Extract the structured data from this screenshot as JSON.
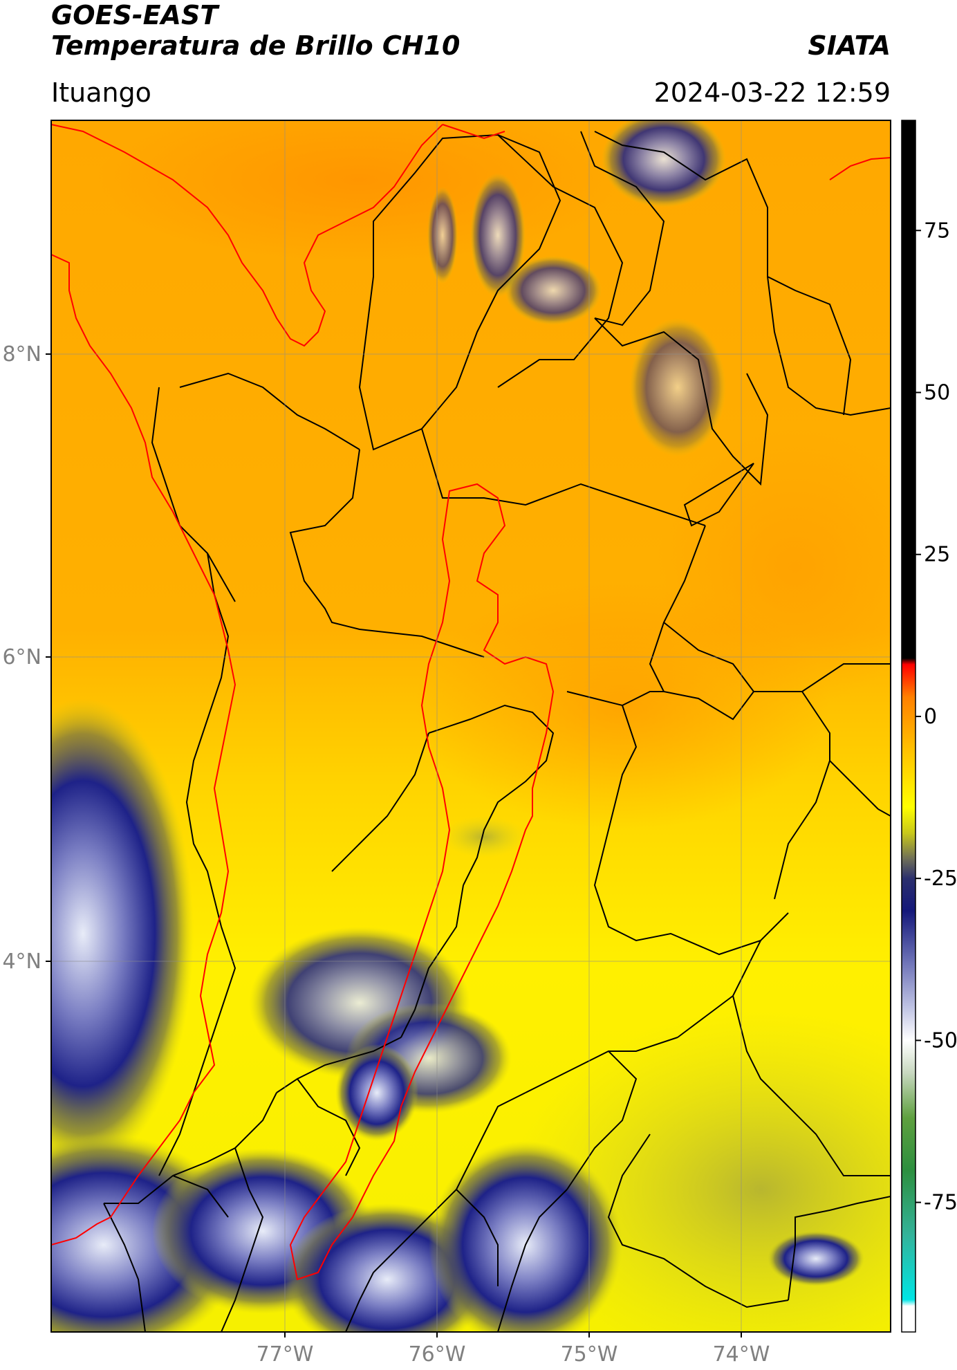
{
  "header": {
    "satellite": "GOES-EAST",
    "product": "Temperatura de Brillo CH10",
    "brand": "SIATA",
    "location": "Ituango",
    "timestamp": "2024-03-22 12:59"
  },
  "map": {
    "lat_range": [
      2.25,
      9.5
    ],
    "lon_range": [
      -78.5,
      -72.65
    ],
    "grid": true,
    "lat_ticks": [
      {
        "value": 8,
        "label": "8°N"
      },
      {
        "value": 6,
        "label": "6°N"
      },
      {
        "value": 4,
        "label": "4°N"
      }
    ],
    "lon_ticks": [
      {
        "value": -77,
        "label": "77°W"
      },
      {
        "value": -76,
        "label": "76°W"
      },
      {
        "value": -75,
        "label": "75°W"
      },
      {
        "value": -74,
        "label": "74°W"
      }
    ],
    "colors": {
      "frame": "#000000",
      "grid": "#999999",
      "borders": "#000000",
      "region_outline": "#ff0000"
    }
  },
  "colorbar": {
    "range": [
      -95,
      92
    ],
    "ticks": [
      {
        "value": 75,
        "label": "75"
      },
      {
        "value": 50,
        "label": "50"
      },
      {
        "value": 25,
        "label": "25"
      },
      {
        "value": 0,
        "label": "0"
      },
      {
        "value": -25,
        "label": "-25"
      },
      {
        "value": -50,
        "label": "-50"
      },
      {
        "value": -75,
        "label": "-75"
      }
    ],
    "stops": [
      {
        "value": -95,
        "color": "#ffffff"
      },
      {
        "value": -91,
        "color": "#ffffff"
      },
      {
        "value": -90,
        "color": "#00e5e5"
      },
      {
        "value": -80,
        "color": "#33b39a"
      },
      {
        "value": -70,
        "color": "#2d8f3f"
      },
      {
        "value": -62,
        "color": "#5ea03f"
      },
      {
        "value": -55,
        "color": "#c8d8c0"
      },
      {
        "value": -50,
        "color": "#ffffff"
      },
      {
        "value": -45,
        "color": "#c0c4e4"
      },
      {
        "value": -38,
        "color": "#6f74b8"
      },
      {
        "value": -30,
        "color": "#14187a"
      },
      {
        "value": -25,
        "color": "#2b2f6d"
      },
      {
        "value": -22,
        "color": "#6e6e58"
      },
      {
        "value": -18,
        "color": "#c8c81a"
      },
      {
        "value": -14,
        "color": "#ffff00"
      },
      {
        "value": -5,
        "color": "#ffc000"
      },
      {
        "value": 3,
        "color": "#ff8000"
      },
      {
        "value": 8,
        "color": "#ff0000"
      },
      {
        "value": 9,
        "color": "#000000"
      },
      {
        "value": 92,
        "color": "#000000"
      }
    ]
  }
}
